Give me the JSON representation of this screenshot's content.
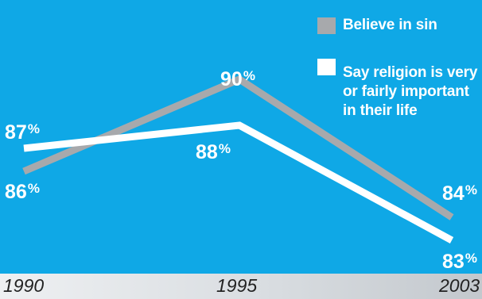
{
  "chart_data": {
    "type": "line",
    "title": "",
    "xlabel": "",
    "ylabel": "",
    "x": [
      "1990",
      "1995",
      "2003"
    ],
    "series": [
      {
        "name": "Believe in sin",
        "values": [
          86,
          90,
          84
        ],
        "color": "#a7a9ac",
        "labels": [
          "86",
          "90",
          "84"
        ]
      },
      {
        "name": "Say religion is very or fairly important in their life",
        "values": [
          87,
          88,
          83
        ],
        "color": "#ffffff",
        "labels": [
          "87",
          "88",
          "83"
        ]
      }
    ],
    "percent_symbol": "%",
    "legend": {
      "placement": "top-right",
      "series_0_lines": [
        "Believe in sin"
      ],
      "series_1_lines": [
        "Say religion is very",
        "or fairly important",
        "in their life"
      ]
    },
    "background": "#0fa8e6"
  }
}
